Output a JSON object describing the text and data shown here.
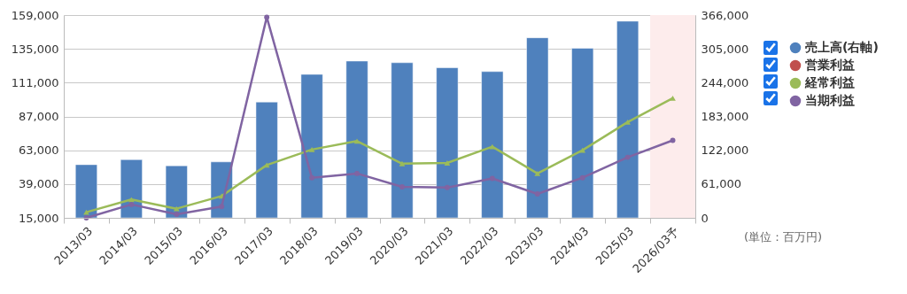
{
  "chart_data": {
    "type": "bar",
    "categories": [
      "2013/03",
      "2014/03",
      "2015/03",
      "2016/03",
      "2017/03",
      "2018/03",
      "2019/03",
      "2020/03",
      "2021/03",
      "2022/03",
      "2023/03",
      "2024/03",
      "2025/03",
      "2026/03予"
    ],
    "series": [
      {
        "name": "売上高(右軸)",
        "axis": "y2",
        "color": "#4f81bd",
        "marker": "circle",
        "values": [
          96000,
          105000,
          94000,
          101000,
          209000,
          259000,
          283000,
          280000,
          271000,
          264000,
          325000,
          306000,
          355000,
          null
        ]
      },
      {
        "name": "営業利益",
        "type": "line",
        "color": "#c0504d",
        "marker": "square",
        "values": [
          null,
          null,
          null,
          null,
          null,
          null,
          null,
          null,
          null,
          null,
          null,
          null,
          null,
          null
        ]
      },
      {
        "name": "経常利益",
        "type": "line",
        "color": "#9bbb59",
        "marker": "triangle",
        "values": [
          19000,
          28000,
          21500,
          30500,
          52500,
          63500,
          69500,
          53500,
          54000,
          65500,
          46500,
          63000,
          83000,
          100000
        ]
      },
      {
        "name": "当期利益",
        "type": "line",
        "color": "#8064a2",
        "marker": "circle",
        "values": [
          15000,
          24500,
          17500,
          23000,
          157500,
          43500,
          46500,
          37000,
          36500,
          43000,
          32000,
          43500,
          58000,
          70000
        ]
      }
    ],
    "ylim": [
      15000,
      159000
    ],
    "yticks": [
      {
        "value": 15000,
        "label": "15,000"
      },
      {
        "value": 39000,
        "label": "39,000"
      },
      {
        "value": 63000,
        "label": "63,000"
      },
      {
        "value": 87000,
        "label": "87,000"
      },
      {
        "value": 111000,
        "label": "111,000"
      },
      {
        "value": 135000,
        "label": "135,000"
      },
      {
        "value": 159000,
        "label": "159,000"
      }
    ],
    "y2lim": [
      0,
      366000
    ],
    "y2ticks": [
      0,
      {
        "value": 61000,
        "label": "61,000"
      },
      {
        "value": 122000,
        "label": "122,000"
      },
      {
        "value": 183000,
        "label": "183,000"
      },
      {
        "value": 244000,
        "label": "244,000"
      },
      {
        "value": 305000,
        "label": "305,000"
      },
      {
        "value": 366000,
        "label": "366,000"
      }
    ],
    "bands": [
      {
        "axis": "x",
        "from": "2026/03予",
        "to": "2026/03予",
        "color": "#fdecec"
      }
    ],
    "grid": "y",
    "legend": "right",
    "annotations": [
      "(単位：百万円)"
    ]
  }
}
